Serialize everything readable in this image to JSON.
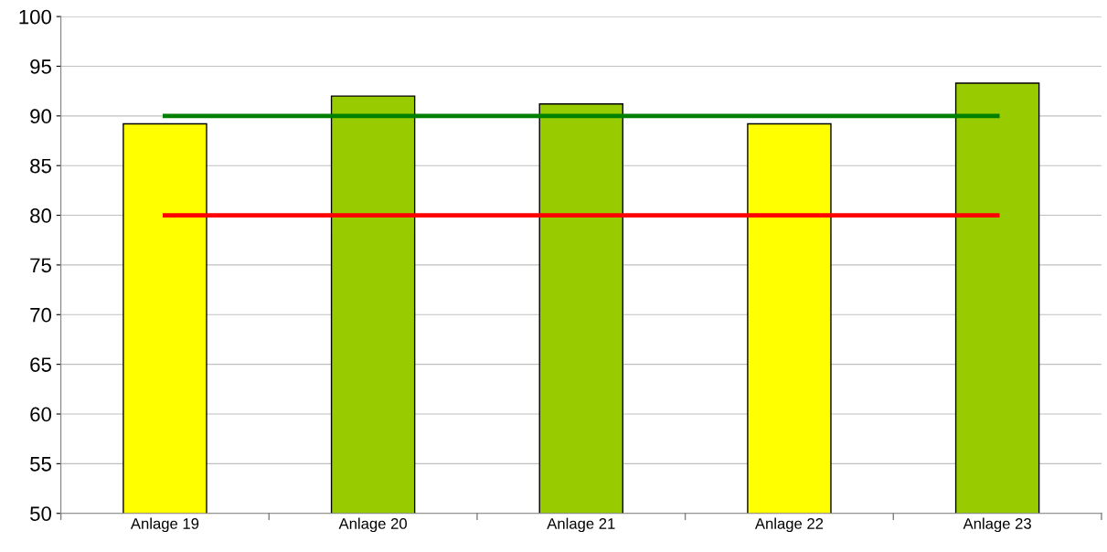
{
  "chart_data": {
    "type": "bar",
    "categories": [
      "Anlage 19",
      "Anlage 20",
      "Anlage 21",
      "Anlage 22",
      "Anlage 23"
    ],
    "series": [
      {
        "colors": [
          "#ffff00",
          "#99cc00",
          "#99cc00",
          "#ffff00",
          "#99cc00"
        ],
        "values": [
          89.2,
          92.0,
          91.2,
          89.2,
          93.3
        ]
      },
      {
        "type": "line",
        "color": "#008000",
        "values": [
          90,
          90,
          90,
          90,
          90
        ]
      },
      {
        "type": "line",
        "color": "#ff0000",
        "values": [
          80,
          80,
          80,
          80,
          80
        ]
      }
    ],
    "ylim": [
      50,
      100
    ],
    "yticks": [
      50,
      55,
      60,
      65,
      70,
      75,
      80,
      85,
      90,
      95,
      100
    ],
    "grid": "y",
    "marker": "none",
    "line_style": "solid"
  }
}
